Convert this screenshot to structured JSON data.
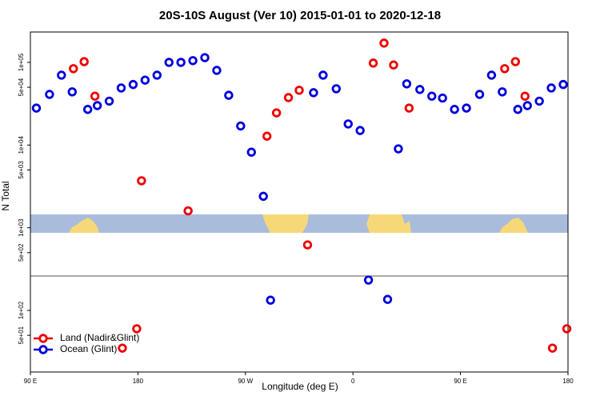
{
  "chart_data": {
    "type": "scatter",
    "title": "20S-10S August (Ver 10)   2015-01-01 to 2020-12-18",
    "x_label": "Longitude (deg E)",
    "y_label": "N Total",
    "log_y": true,
    "xlim": [
      90,
      540
    ],
    "ylim": [
      18,
      233000
    ],
    "xticks": [
      {
        "value": 90,
        "label": "90 E"
      },
      180,
      {
        "value": 270,
        "label": "90 W"
      },
      {
        "value": 360,
        "label": "0"
      },
      {
        "value": 450,
        "label": "90 E"
      },
      {
        "value": 540,
        "label": "180"
      }
    ],
    "yticks": [
      {
        "value": 50,
        "label": "5e+01"
      },
      {
        "value": 100,
        "label": "1e+02"
      },
      {
        "value": 500,
        "label": "5e+02"
      },
      {
        "value": 1000,
        "label": "1e+03"
      },
      {
        "value": 5000,
        "label": "5e+03"
      },
      {
        "value": 10000,
        "label": "1e+04"
      },
      {
        "value": 50000,
        "label": "5e+04"
      },
      {
        "value": 100000,
        "label": "1e+05"
      }
    ],
    "legend": "bottom-left",
    "series": [
      {
        "name": "Land (Nadir&Glint)",
        "color": "#ee0000",
        "x": [
          126,
          135,
          144,
          167,
          179,
          183,
          222,
          288,
          296,
          306,
          315,
          322,
          377,
          386,
          394,
          407,
          487,
          496,
          504,
          527,
          539
        ],
        "values": [
          84000,
          102000,
          39000,
          35,
          60,
          3700,
          1600,
          12800,
          24500,
          37500,
          46000,
          620,
          98000,
          171000,
          93000,
          28000,
          84000,
          102000,
          39000,
          35,
          60
        ]
      },
      {
        "name": "Ocean (Glint)",
        "color": "#0000dd",
        "x": [
          95,
          106,
          116,
          125,
          138,
          146,
          156,
          166,
          176,
          186,
          196,
          206,
          216,
          226,
          236,
          246,
          256,
          266,
          275,
          285,
          291,
          327,
          335,
          346,
          356,
          366,
          373,
          389,
          398,
          405,
          416,
          426,
          435,
          445,
          455,
          466,
          476,
          485,
          498,
          506,
          516,
          526,
          536
        ],
        "values": [
          28000,
          41000,
          70000,
          44000,
          27000,
          30000,
          34000,
          49000,
          54000,
          61000,
          70000,
          100000,
          100000,
          105000,
          114000,
          80000,
          40000,
          17000,
          8200,
          2400,
          133,
          43000,
          70000,
          48000,
          18000,
          15000,
          233,
          136,
          9000,
          55000,
          47000,
          39000,
          37000,
          27000,
          28000,
          41000,
          70000,
          44000,
          27000,
          30000,
          34000,
          49000,
          54000
        ]
      }
    ]
  }
}
